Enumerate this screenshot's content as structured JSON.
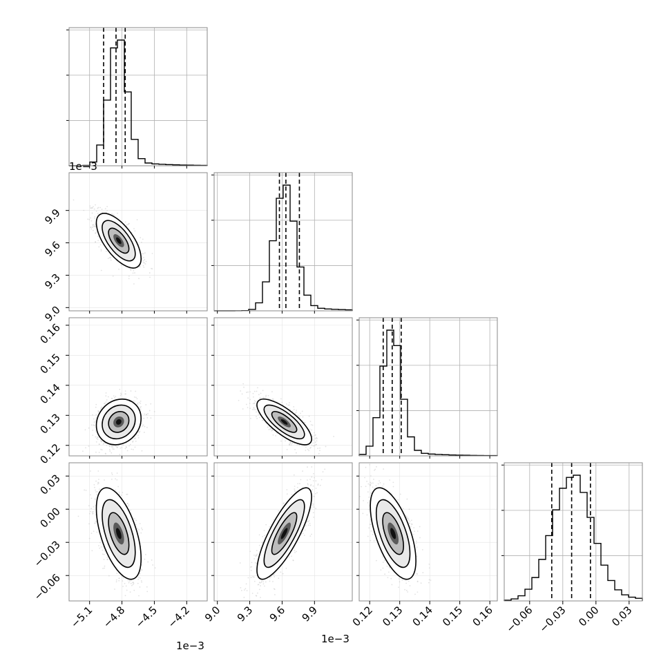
{
  "chart_data": {
    "type": "corner",
    "grid": true,
    "parameters": [
      {
        "range": [
          -5.29,
          -4.01
        ],
        "ticks": [
          "−5.1",
          "−4.8",
          "−4.5",
          "−4.2"
        ],
        "tick_values": [
          -5.1,
          -4.8,
          -4.5,
          -4.2
        ],
        "multiplier": "1e−3",
        "quantiles": [
          -4.97,
          -4.855,
          -4.77
        ],
        "hist_peak_center": -4.84,
        "hist_sigma": 0.085
      },
      {
        "range": [
          8.97,
          10.25
        ],
        "ticks": [
          "9.0",
          "9.3",
          "9.6",
          "9.9"
        ],
        "tick_values": [
          9.0,
          9.3,
          9.6,
          9.9
        ],
        "multiplier": "1e−3",
        "quantiles": [
          9.575,
          9.635,
          9.76
        ],
        "hist_peak_center": 9.62,
        "hist_sigma": 0.1
      },
      {
        "range": [
          0.1165,
          0.1625
        ],
        "ticks": [
          "0.12",
          "0.13",
          "0.14",
          "0.15",
          "0.16"
        ],
        "tick_values": [
          0.12,
          0.13,
          0.14,
          0.15,
          0.16
        ],
        "multiplier": "",
        "quantiles": [
          0.1245,
          0.1275,
          0.1305
        ],
        "hist_peak_center": 0.1272,
        "hist_sigma": 0.0032
      },
      {
        "range": [
          -0.083,
          0.042
        ],
        "ticks": [
          "−0.06",
          "−0.03",
          "0.00",
          "0.03"
        ],
        "tick_values": [
          -0.06,
          -0.03,
          0.0,
          0.03
        ],
        "multiplier": "",
        "quantiles": [
          -0.04,
          -0.022,
          -0.005
        ],
        "hist_peak_center": -0.022,
        "hist_sigma": 0.018
      }
    ],
    "top_left_multiplier": "1e−3",
    "pairs": [
      {
        "row": 1,
        "col": 0,
        "center": [
          -4.83,
          9.62
        ],
        "sigma": [
          0.09,
          0.11
        ],
        "rho": -0.65
      },
      {
        "row": 2,
        "col": 0,
        "center": [
          -4.83,
          0.1278
        ],
        "sigma": [
          0.09,
          0.0033
        ],
        "rho": 0.15
      },
      {
        "row": 2,
        "col": 1,
        "center": [
          9.62,
          0.1278
        ],
        "sigma": [
          0.11,
          0.0033
        ],
        "rho": -0.75
      },
      {
        "row": 3,
        "col": 0,
        "center": [
          -4.83,
          -0.022
        ],
        "sigma": [
          0.09,
          0.018
        ],
        "rho": -0.55
      },
      {
        "row": 3,
        "col": 1,
        "center": [
          9.62,
          -0.022
        ],
        "sigma": [
          0.11,
          0.018
        ],
        "rho": 0.8
      },
      {
        "row": 3,
        "col": 2,
        "center": [
          0.1278,
          -0.022
        ],
        "sigma": [
          0.0033,
          0.018
        ],
        "rho": -0.6
      }
    ],
    "colors": {
      "line": "#000000",
      "grid": "#b0b0b0",
      "scatter": "#c8c8c8",
      "frame": "#888888"
    }
  }
}
